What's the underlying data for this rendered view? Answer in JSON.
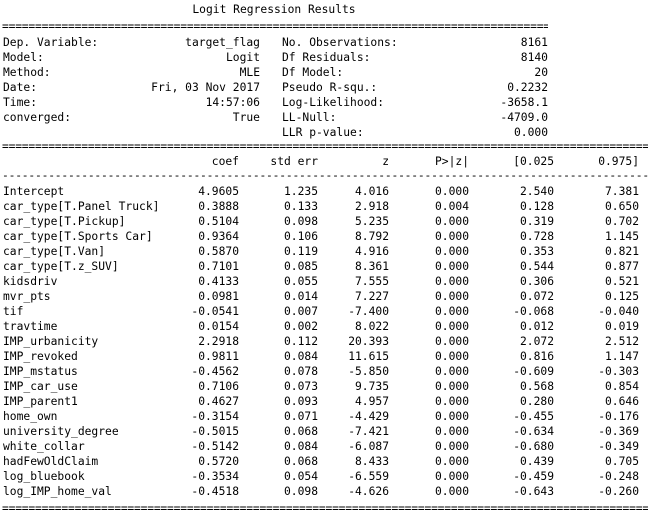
{
  "title": "Logit Regression Results",
  "summary_left": [
    {
      "label": "Dep. Variable:",
      "value": "target_flag"
    },
    {
      "label": "Model:",
      "value": "Logit"
    },
    {
      "label": "Method:",
      "value": "MLE"
    },
    {
      "label": "Date:",
      "value": "Fri, 03 Nov 2017"
    },
    {
      "label": "Time:",
      "value": "14:57:06"
    },
    {
      "label": "converged:",
      "value": "True"
    },
    {
      "label": "",
      "value": ""
    }
  ],
  "summary_right": [
    {
      "label": "No. Observations:",
      "value": "8161"
    },
    {
      "label": "Df Residuals:",
      "value": "8140"
    },
    {
      "label": "Df Model:",
      "value": "20"
    },
    {
      "label": "Pseudo R-squ.:",
      "value": "0.2232"
    },
    {
      "label": "Log-Likelihood:",
      "value": "-3658.1"
    },
    {
      "label": "LL-Null:",
      "value": "-4709.0"
    },
    {
      "label": "LLR p-value:",
      "value": "0.000"
    }
  ],
  "columns": [
    "coef",
    "std err",
    "z",
    "P>|z|",
    "[0.025",
    "0.975]"
  ],
  "rows": [
    [
      "Intercept",
      "4.9605",
      "1.235",
      "4.016",
      "0.000",
      "2.540",
      "7.381"
    ],
    [
      "car_type[T.Panel Truck]",
      "0.3888",
      "0.133",
      "2.918",
      "0.004",
      "0.128",
      "0.650"
    ],
    [
      "car_type[T.Pickup]",
      "0.5104",
      "0.098",
      "5.235",
      "0.000",
      "0.319",
      "0.702"
    ],
    [
      "car_type[T.Sports Car]",
      "0.9364",
      "0.106",
      "8.792",
      "0.000",
      "0.728",
      "1.145"
    ],
    [
      "car_type[T.Van]",
      "0.5870",
      "0.119",
      "4.916",
      "0.000",
      "0.353",
      "0.821"
    ],
    [
      "car_type[T.z_SUV]",
      "0.7101",
      "0.085",
      "8.361",
      "0.000",
      "0.544",
      "0.877"
    ],
    [
      "kidsdriv",
      "0.4133",
      "0.055",
      "7.555",
      "0.000",
      "0.306",
      "0.521"
    ],
    [
      "mvr_pts",
      "0.0981",
      "0.014",
      "7.227",
      "0.000",
      "0.072",
      "0.125"
    ],
    [
      "tif",
      "-0.0541",
      "0.007",
      "-7.400",
      "0.000",
      "-0.068",
      "-0.040"
    ],
    [
      "travtime",
      "0.0154",
      "0.002",
      "8.022",
      "0.000",
      "0.012",
      "0.019"
    ],
    [
      "IMP_urbanicity",
      "2.2918",
      "0.112",
      "20.393",
      "0.000",
      "2.072",
      "2.512"
    ],
    [
      "IMP_revoked",
      "0.9811",
      "0.084",
      "11.615",
      "0.000",
      "0.816",
      "1.147"
    ],
    [
      "IMP_mstatus",
      "-0.4562",
      "0.078",
      "-5.850",
      "0.000",
      "-0.609",
      "-0.303"
    ],
    [
      "IMP_car_use",
      "0.7106",
      "0.073",
      "9.735",
      "0.000",
      "0.568",
      "0.854"
    ],
    [
      "IMP_parent1",
      "0.4627",
      "0.093",
      "4.957",
      "0.000",
      "0.280",
      "0.646"
    ],
    [
      "home_own",
      "-0.3154",
      "0.071",
      "-4.429",
      "0.000",
      "-0.455",
      "-0.176"
    ],
    [
      "university_degree",
      "-0.5015",
      "0.068",
      "-7.421",
      "0.000",
      "-0.634",
      "-0.369"
    ],
    [
      "white_collar",
      "-0.5142",
      "0.084",
      "-6.087",
      "0.000",
      "-0.680",
      "-0.349"
    ],
    [
      "hadFewOldClaim",
      "0.5720",
      "0.068",
      "8.433",
      "0.000",
      "0.439",
      "0.705"
    ],
    [
      "log_bluebook",
      "-0.3534",
      "0.054",
      "-6.559",
      "0.000",
      "-0.459",
      "-0.248"
    ],
    [
      "log_IMP_home_val",
      "-0.4518",
      "0.098",
      "-4.626",
      "0.000",
      "-0.643",
      "-0.260"
    ]
  ]
}
